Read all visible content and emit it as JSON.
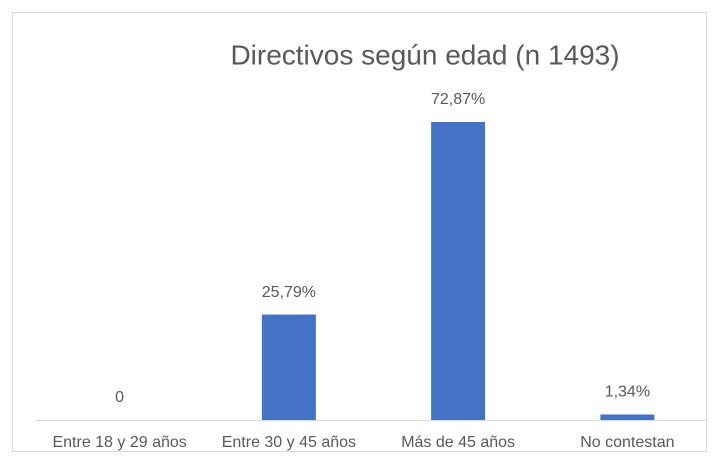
{
  "chart_data": {
    "type": "bar",
    "title": "Directivos según edad (n 1493)",
    "categories": [
      "Entre 18 y 29 años",
      "Entre 30 y 45 años",
      "Más de 45 años",
      "No contestan"
    ],
    "values": [
      0,
      25.79,
      72.87,
      1.34
    ],
    "value_labels": [
      "0",
      "25,79%",
      "72,87%",
      "1,34%"
    ],
    "color": "#4472c4"
  }
}
